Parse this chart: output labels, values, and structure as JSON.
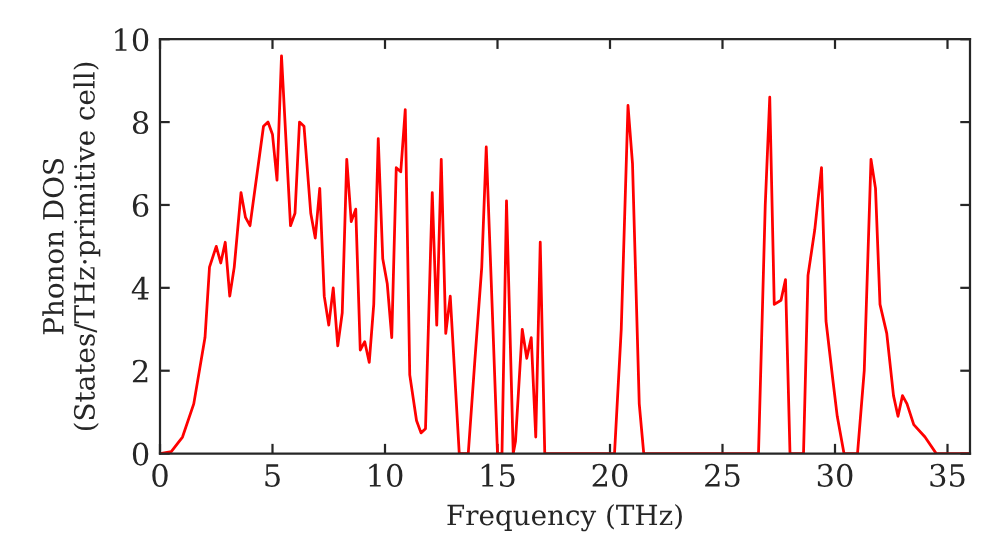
{
  "chart_data": {
    "type": "line",
    "xlabel": "Frequency (THz)",
    "ylabel": "Phonon DOS\n(States/THz·primitive cell)",
    "x": [
      0,
      0.5,
      1,
      1.5,
      2,
      2.2,
      2.5,
      2.7,
      2.9,
      3.1,
      3.3,
      3.6,
      3.8,
      4.0,
      4.3,
      4.6,
      4.8,
      5.0,
      5.2,
      5.4,
      5.8,
      6.0,
      6.2,
      6.4,
      6.7,
      6.9,
      7.1,
      7.3,
      7.5,
      7.7,
      7.9,
      8.1,
      8.3,
      8.5,
      8.7,
      8.9,
      9.1,
      9.3,
      9.5,
      9.7,
      9.9,
      10.1,
      10.3,
      10.5,
      10.7,
      10.9,
      11.1,
      11.4,
      11.6,
      11.8,
      12.1,
      12.3,
      12.5,
      12.7,
      12.9,
      13.3,
      13.7,
      14.0,
      14.3,
      14.5,
      14.8,
      15.0,
      15.2,
      15.4,
      15.7,
      15.8,
      16.1,
      16.3,
      16.5,
      16.7,
      16.9,
      17.1,
      20.2,
      20.5,
      20.8,
      21.0,
      21.3,
      21.5,
      26.6,
      26.9,
      27.1,
      27.3,
      27.6,
      27.8,
      28.0,
      28.6,
      28.8,
      29.1,
      29.4,
      29.6,
      29.9,
      30.1,
      30.4,
      31.0,
      31.3,
      31.6,
      31.8,
      32.0,
      32.3,
      32.6,
      32.8,
      33.0,
      33.2,
      33.5,
      34.0,
      34.5,
      36
    ],
    "series": [
      {
        "color": "#ff0000",
        "values": [
          0,
          0.05,
          0.4,
          1.2,
          2.8,
          4.5,
          5.0,
          4.6,
          5.1,
          3.8,
          4.5,
          6.3,
          5.7,
          5.5,
          6.7,
          7.9,
          8.0,
          7.7,
          6.6,
          9.6,
          5.5,
          5.8,
          8.0,
          7.9,
          5.8,
          5.2,
          6.4,
          3.8,
          3.1,
          4.0,
          2.6,
          3.4,
          7.1,
          5.6,
          5.9,
          2.5,
          2.7,
          2.2,
          3.6,
          7.6,
          4.7,
          4.1,
          2.8,
          6.9,
          6.8,
          8.3,
          1.9,
          0.8,
          0.5,
          0.6,
          6.3,
          3.1,
          7.1,
          2.9,
          3.8,
          0,
          0,
          2.3,
          4.5,
          7.4,
          3.0,
          0,
          0,
          6.1,
          0,
          0.3,
          3.0,
          2.3,
          2.8,
          0.4,
          5.1,
          0,
          0,
          3.0,
          8.4,
          7.0,
          1.2,
          0,
          0,
          6.0,
          8.6,
          3.6,
          3.7,
          4.2,
          0,
          0,
          4.3,
          5.4,
          6.9,
          3.2,
          1.8,
          0.9,
          0,
          0,
          2.0,
          7.1,
          6.4,
          3.6,
          2.9,
          1.4,
          0.9,
          1.4,
          1.2,
          0.7,
          0.4,
          0,
          0
        ]
      }
    ],
    "xlim": [
      0,
      36
    ],
    "ylim": [
      0,
      10
    ],
    "xticks": [
      0,
      5,
      10,
      15,
      20,
      25,
      30,
      35
    ],
    "yticks": [
      0,
      2,
      4,
      6,
      8,
      10
    ],
    "grid": false,
    "legend": false
  }
}
